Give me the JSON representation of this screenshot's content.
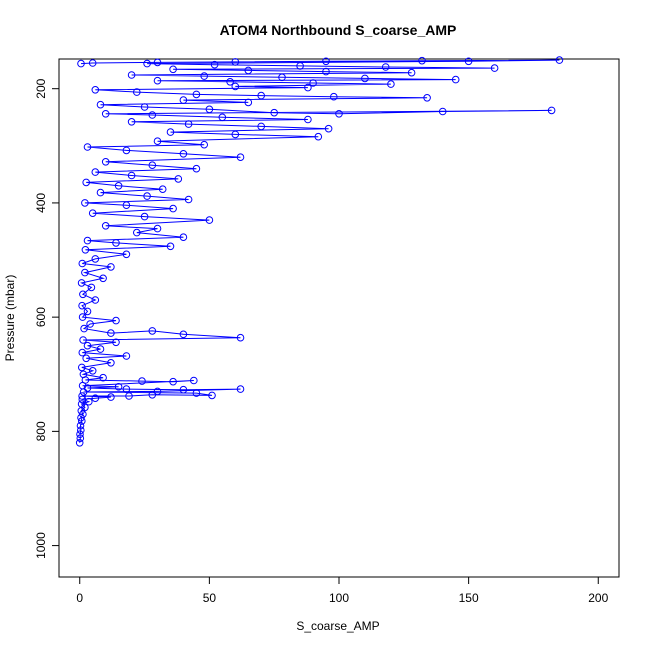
{
  "chart_data": {
    "type": "scatter",
    "title": "ATOM4 Northbound S_coarse_AMP",
    "xlabel": "S_coarse_AMP",
    "ylabel": "Pressure (mbar)",
    "xlim": [
      -8,
      208
    ],
    "ylim": [
      1055,
      148
    ],
    "x_ticks": [
      0,
      50,
      100,
      150,
      200
    ],
    "y_ticks": [
      200,
      400,
      600,
      800,
      1000
    ],
    "grid": false,
    "legend": "none",
    "series": [
      {
        "style": "lines+open-circles",
        "color": "#0000ff",
        "points": [
          [
            0.0,
            820
          ],
          [
            0.2,
            812
          ],
          [
            0.1,
            805
          ],
          [
            0.4,
            798
          ],
          [
            0.3,
            790
          ],
          [
            0.8,
            782
          ],
          [
            0.5,
            776
          ],
          [
            1.2,
            770
          ],
          [
            0.6,
            764
          ],
          [
            2.0,
            758
          ],
          [
            0.7,
            752
          ],
          [
            3.5,
            748
          ],
          [
            1.0,
            744
          ],
          [
            6.0,
            742
          ],
          [
            12.0,
            740
          ],
          [
            0.9,
            738
          ],
          [
            19.0,
            738
          ],
          [
            28.0,
            736
          ],
          [
            51.0,
            737
          ],
          [
            45.0,
            733
          ],
          [
            1.5,
            731
          ],
          [
            30.0,
            730
          ],
          [
            62.0,
            726
          ],
          [
            40.0,
            727
          ],
          [
            18.0,
            726
          ],
          [
            3.0,
            724
          ],
          [
            15.0,
            722
          ],
          [
            1.1,
            720
          ],
          [
            44.0,
            711
          ],
          [
            36.0,
            713
          ],
          [
            24.0,
            712
          ],
          [
            2.2,
            710
          ],
          [
            9.0,
            706
          ],
          [
            1.4,
            700
          ],
          [
            5.0,
            694
          ],
          [
            0.8,
            688
          ],
          [
            12.0,
            680
          ],
          [
            2.5,
            672
          ],
          [
            18.0,
            668
          ],
          [
            1.0,
            662
          ],
          [
            8.0,
            656
          ],
          [
            3.0,
            650
          ],
          [
            14.0,
            644
          ],
          [
            1.3,
            640
          ],
          [
            62.0,
            636
          ],
          [
            40.0,
            630
          ],
          [
            28.0,
            624
          ],
          [
            12.0,
            628
          ],
          [
            1.7,
            620
          ],
          [
            4.0,
            612
          ],
          [
            14.0,
            606
          ],
          [
            1.1,
            600
          ],
          [
            3.0,
            590
          ],
          [
            0.9,
            580
          ],
          [
            6.0,
            570
          ],
          [
            1.2,
            560
          ],
          [
            4.5,
            548
          ],
          [
            0.7,
            540
          ],
          [
            9.0,
            532
          ],
          [
            2.0,
            522
          ],
          [
            12.0,
            512
          ],
          [
            1.0,
            506
          ],
          [
            6.0,
            498
          ],
          [
            18.0,
            490
          ],
          [
            2.2,
            482
          ],
          [
            35.0,
            476
          ],
          [
            14.0,
            470
          ],
          [
            3.0,
            466
          ],
          [
            40.0,
            460
          ],
          [
            22.0,
            452
          ],
          [
            30.0,
            445
          ],
          [
            10.0,
            440
          ],
          [
            50.0,
            430
          ],
          [
            25.0,
            424
          ],
          [
            5.0,
            418
          ],
          [
            36.0,
            410
          ],
          [
            18.0,
            404
          ],
          [
            2.0,
            400
          ],
          [
            42.0,
            394
          ],
          [
            26.0,
            388
          ],
          [
            8.0,
            382
          ],
          [
            32.0,
            376
          ],
          [
            15.0,
            370
          ],
          [
            2.5,
            364
          ],
          [
            38.0,
            358
          ],
          [
            20.0,
            352
          ],
          [
            6.0,
            346
          ],
          [
            45.0,
            340
          ],
          [
            28.0,
            334
          ],
          [
            10.0,
            328
          ],
          [
            62.0,
            320
          ],
          [
            40.0,
            314
          ],
          [
            18.0,
            308
          ],
          [
            3.0,
            302
          ],
          [
            48.0,
            298
          ],
          [
            30.0,
            292
          ],
          [
            92.0,
            284
          ],
          [
            60.0,
            280
          ],
          [
            35.0,
            276
          ],
          [
            96.0,
            270
          ],
          [
            70.0,
            266
          ],
          [
            42.0,
            262
          ],
          [
            20.0,
            258
          ],
          [
            88.0,
            254
          ],
          [
            55.0,
            250
          ],
          [
            28.0,
            246
          ],
          [
            10.0,
            244
          ],
          [
            182.0,
            238
          ],
          [
            140.0,
            240
          ],
          [
            100.0,
            244
          ],
          [
            75.0,
            242
          ],
          [
            50.0,
            236
          ],
          [
            25.0,
            232
          ],
          [
            8.0,
            228
          ],
          [
            65.0,
            224
          ],
          [
            40.0,
            220
          ],
          [
            134.0,
            216
          ],
          [
            98.0,
            214
          ],
          [
            70.0,
            212
          ],
          [
            45.0,
            210
          ],
          [
            22.0,
            206
          ],
          [
            6.0,
            202
          ],
          [
            88.0,
            198
          ],
          [
            60.0,
            196
          ],
          [
            120.0,
            192
          ],
          [
            90.0,
            190
          ],
          [
            58.0,
            188
          ],
          [
            30.0,
            186
          ],
          [
            145.0,
            184
          ],
          [
            110.0,
            182
          ],
          [
            78.0,
            180
          ],
          [
            48.0,
            178
          ],
          [
            20.0,
            176
          ],
          [
            128.0,
            172
          ],
          [
            95.0,
            170
          ],
          [
            65.0,
            168
          ],
          [
            36.0,
            166
          ],
          [
            160.0,
            164
          ],
          [
            118.0,
            162
          ],
          [
            85.0,
            160
          ],
          [
            52.0,
            158
          ],
          [
            26.0,
            156
          ],
          [
            150.0,
            152
          ],
          [
            185.0,
            150
          ],
          [
            132.0,
            151
          ],
          [
            95.0,
            152
          ],
          [
            60.0,
            153
          ],
          [
            30.0,
            154
          ],
          [
            5.0,
            155
          ],
          [
            0.5,
            156
          ]
        ]
      }
    ]
  }
}
